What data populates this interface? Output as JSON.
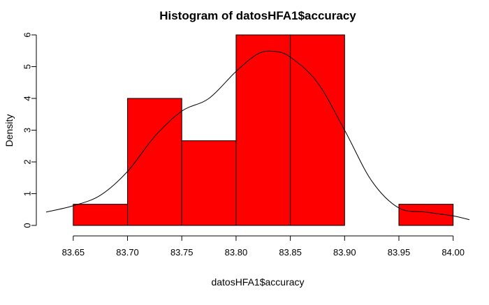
{
  "chart_data": {
    "type": "bar",
    "title": "Histogram of datosHFA1$accuracy",
    "xlabel": "datosHFA1$accuracy",
    "ylabel": "Density",
    "bins": [
      {
        "x0": 83.65,
        "x1": 83.7,
        "density": 0.667
      },
      {
        "x0": 83.7,
        "x1": 83.75,
        "density": 4.0
      },
      {
        "x0": 83.75,
        "x1": 83.8,
        "density": 2.667
      },
      {
        "x0": 83.8,
        "x1": 83.85,
        "density": 6.0
      },
      {
        "x0": 83.85,
        "x1": 83.9,
        "density": 6.0
      },
      {
        "x0": 83.9,
        "x1": 83.95,
        "density": 0.0
      },
      {
        "x0": 83.95,
        "x1": 84.0,
        "density": 0.667
      }
    ],
    "density_curve": {
      "x": [
        83.625,
        83.65,
        83.675,
        83.7,
        83.725,
        83.75,
        83.775,
        83.8,
        83.82,
        83.835,
        83.85,
        83.875,
        83.9,
        83.925,
        83.95,
        83.975,
        84.0,
        84.015
      ],
      "y": [
        0.42,
        0.62,
        0.95,
        1.7,
        2.8,
        3.6,
        4.0,
        4.85,
        5.4,
        5.48,
        5.3,
        4.5,
        3.0,
        1.4,
        0.55,
        0.42,
        0.3,
        0.18
      ]
    },
    "xlim": [
      83.625,
      84.015
    ],
    "ylim": [
      0,
      6
    ],
    "x_ticks": [
      "83.65",
      "83.70",
      "83.75",
      "83.80",
      "83.85",
      "83.90",
      "83.95",
      "84.00"
    ],
    "y_ticks": [
      "0",
      "1",
      "2",
      "3",
      "4",
      "5",
      "6"
    ],
    "grid": false,
    "colors": {
      "bar_fill": "#ff0000",
      "bar_stroke": "#000000",
      "curve": "#000000"
    }
  }
}
